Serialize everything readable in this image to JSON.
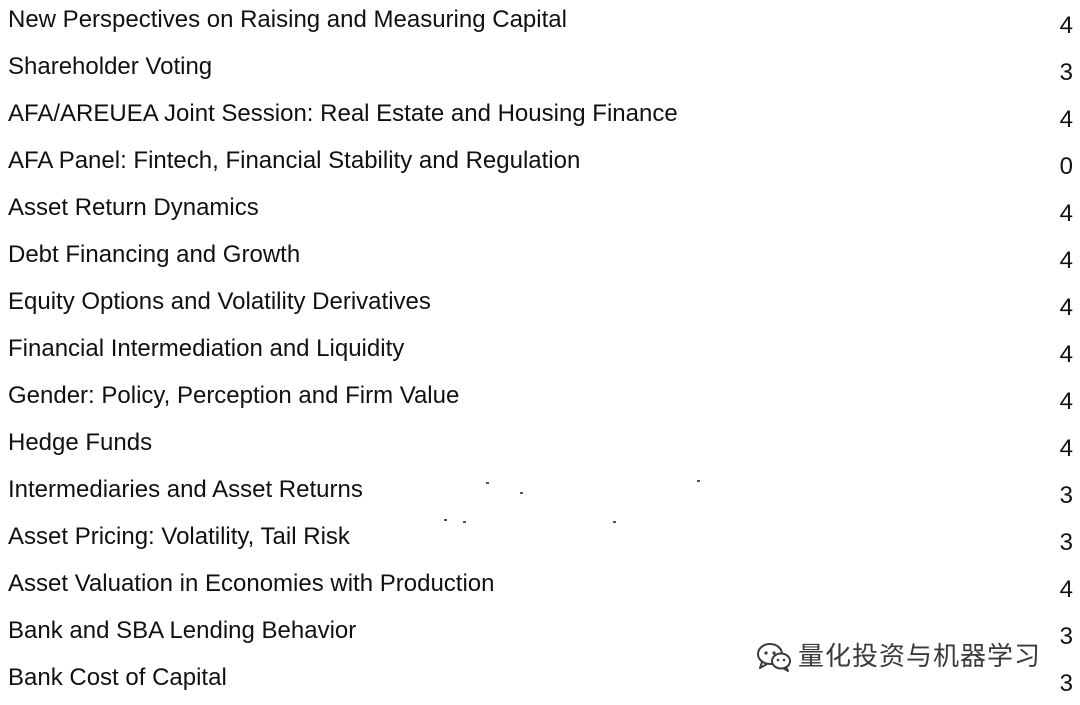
{
  "sessions": [
    {
      "title": "New Perspectives on Raising and Measuring Capital",
      "count": "4"
    },
    {
      "title": "Shareholder Voting",
      "count": "3"
    },
    {
      "title": "AFA/AREUEA Joint Session: Real Estate and Housing Finance",
      "count": "4"
    },
    {
      "title": "AFA Panel: Fintech, Financial Stability and Regulation",
      "count": "0"
    },
    {
      "title": "Asset Return Dynamics",
      "count": "4"
    },
    {
      "title": "Debt Financing and Growth",
      "count": "4"
    },
    {
      "title": "Equity Options and Volatility Derivatives",
      "count": "4"
    },
    {
      "title": "Financial Intermediation and Liquidity",
      "count": "4"
    },
    {
      "title": "Gender: Policy, Perception and Firm Value",
      "count": "4"
    },
    {
      "title": "Hedge Funds",
      "count": "4"
    },
    {
      "title": "Intermediaries and Asset Returns",
      "count": "3"
    },
    {
      "title": "Asset Pricing: Volatility, Tail Risk",
      "count": "3"
    },
    {
      "title": "Asset Valuation in Economies with Production",
      "count": "4"
    },
    {
      "title": "Bank and SBA Lending Behavior",
      "count": "3"
    },
    {
      "title": "Bank Cost of Capital",
      "count": "3"
    }
  ],
  "watermark": {
    "icon": "wechat-icon",
    "text": "量化投资与机器学习"
  }
}
